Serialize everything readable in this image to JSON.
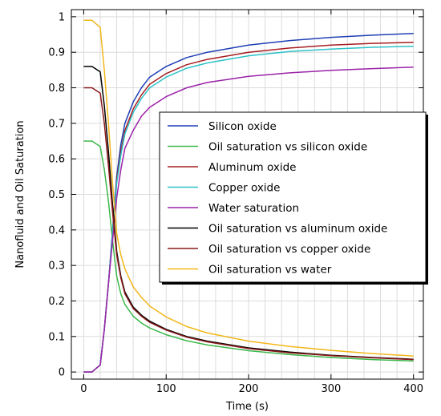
{
  "chart_data": {
    "type": "line",
    "title": "",
    "xlabel": "Time (s)",
    "ylabel": "Nanofluid and Oil Saturation",
    "xlim": [
      -15,
      412
    ],
    "ylim": [
      -0.02,
      1.02
    ],
    "xticks": [
      0,
      100,
      200,
      300,
      400
    ],
    "yticks": [
      0,
      0.1,
      0.2,
      0.3,
      0.4,
      0.5,
      0.6,
      0.7,
      0.8,
      0.9,
      1
    ],
    "xtick_labels": [
      "0",
      "100",
      "200",
      "300",
      "400"
    ],
    "ytick_labels": [
      "0",
      "0.1",
      "0.2",
      "0.3",
      "0.4",
      "0.5",
      "0.6",
      "0.7",
      "0.8",
      "0.9",
      "1"
    ],
    "grid": true,
    "legend_position": "center-right",
    "series": [
      {
        "name": "Silicon oxide",
        "color": "#1f3fb5",
        "x": [
          0,
          10,
          20,
          25,
          30,
          35,
          40,
          45,
          50,
          60,
          70,
          80,
          100,
          125,
          150,
          200,
          250,
          300,
          350,
          400
        ],
        "y": [
          0,
          0,
          0.02,
          0.12,
          0.25,
          0.4,
          0.55,
          0.64,
          0.7,
          0.76,
          0.8,
          0.83,
          0.86,
          0.885,
          0.9,
          0.92,
          0.933,
          0.942,
          0.948,
          0.953
        ]
      },
      {
        "name": "Oil saturation vs silicon oxide",
        "color": "#3cb84a",
        "x": [
          0,
          10,
          20,
          25,
          30,
          35,
          40,
          45,
          50,
          60,
          70,
          80,
          100,
          125,
          150,
          200,
          250,
          300,
          350,
          400
        ],
        "y": [
          0.65,
          0.65,
          0.635,
          0.57,
          0.48,
          0.37,
          0.27,
          0.22,
          0.19,
          0.157,
          0.138,
          0.124,
          0.105,
          0.088,
          0.076,
          0.06,
          0.049,
          0.041,
          0.035,
          0.031
        ]
      },
      {
        "name": "Aluminum oxide",
        "color": "#a61e22",
        "x": [
          0,
          10,
          20,
          25,
          30,
          35,
          40,
          45,
          50,
          60,
          70,
          80,
          100,
          125,
          150,
          200,
          250,
          300,
          350,
          400
        ],
        "y": [
          0,
          0,
          0.02,
          0.12,
          0.25,
          0.39,
          0.54,
          0.62,
          0.68,
          0.74,
          0.78,
          0.81,
          0.84,
          0.865,
          0.88,
          0.9,
          0.912,
          0.92,
          0.925,
          0.928
        ]
      },
      {
        "name": "Copper oxide",
        "color": "#2ec2c9",
        "x": [
          0,
          10,
          20,
          25,
          30,
          35,
          40,
          45,
          50,
          60,
          70,
          80,
          100,
          125,
          150,
          200,
          250,
          300,
          350,
          400
        ],
        "y": [
          0,
          0,
          0.02,
          0.12,
          0.25,
          0.39,
          0.53,
          0.61,
          0.67,
          0.73,
          0.77,
          0.8,
          0.83,
          0.855,
          0.87,
          0.89,
          0.902,
          0.909,
          0.914,
          0.917
        ]
      },
      {
        "name": "Water saturation",
        "color": "#9b22a8",
        "x": [
          0,
          10,
          20,
          25,
          30,
          35,
          40,
          45,
          50,
          60,
          70,
          80,
          100,
          125,
          150,
          200,
          250,
          300,
          350,
          400
        ],
        "y": [
          0,
          0,
          0.02,
          0.12,
          0.25,
          0.37,
          0.49,
          0.57,
          0.63,
          0.68,
          0.72,
          0.745,
          0.775,
          0.8,
          0.815,
          0.832,
          0.842,
          0.849,
          0.854,
          0.858
        ]
      },
      {
        "name": "Oil saturation vs aluminum oxide",
        "color": "#000000",
        "x": [
          0,
          10,
          20,
          25,
          30,
          35,
          40,
          45,
          50,
          60,
          70,
          80,
          100,
          125,
          150,
          200,
          250,
          300,
          350,
          400
        ],
        "y": [
          0.86,
          0.86,
          0.845,
          0.75,
          0.62,
          0.47,
          0.34,
          0.27,
          0.225,
          0.183,
          0.16,
          0.143,
          0.12,
          0.1,
          0.087,
          0.068,
          0.056,
          0.047,
          0.041,
          0.036
        ]
      },
      {
        "name": "Oil saturation vs copper oxide",
        "color": "#8b1a1a",
        "x": [
          0,
          10,
          20,
          25,
          30,
          35,
          40,
          45,
          50,
          60,
          70,
          80,
          100,
          125,
          150,
          200,
          250,
          300,
          350,
          400
        ],
        "y": [
          0.8,
          0.8,
          0.785,
          0.7,
          0.58,
          0.45,
          0.33,
          0.265,
          0.22,
          0.179,
          0.157,
          0.14,
          0.118,
          0.098,
          0.085,
          0.066,
          0.054,
          0.046,
          0.04,
          0.035
        ]
      },
      {
        "name": "Oil saturation vs water",
        "color": "#f2b71a",
        "x": [
          0,
          10,
          20,
          25,
          30,
          35,
          40,
          45,
          50,
          60,
          70,
          80,
          100,
          125,
          150,
          200,
          250,
          300,
          350,
          400
        ],
        "y": [
          0.99,
          0.99,
          0.97,
          0.85,
          0.7,
          0.53,
          0.39,
          0.33,
          0.29,
          0.24,
          0.21,
          0.186,
          0.155,
          0.128,
          0.11,
          0.087,
          0.072,
          0.061,
          0.052,
          0.045
        ]
      }
    ]
  }
}
